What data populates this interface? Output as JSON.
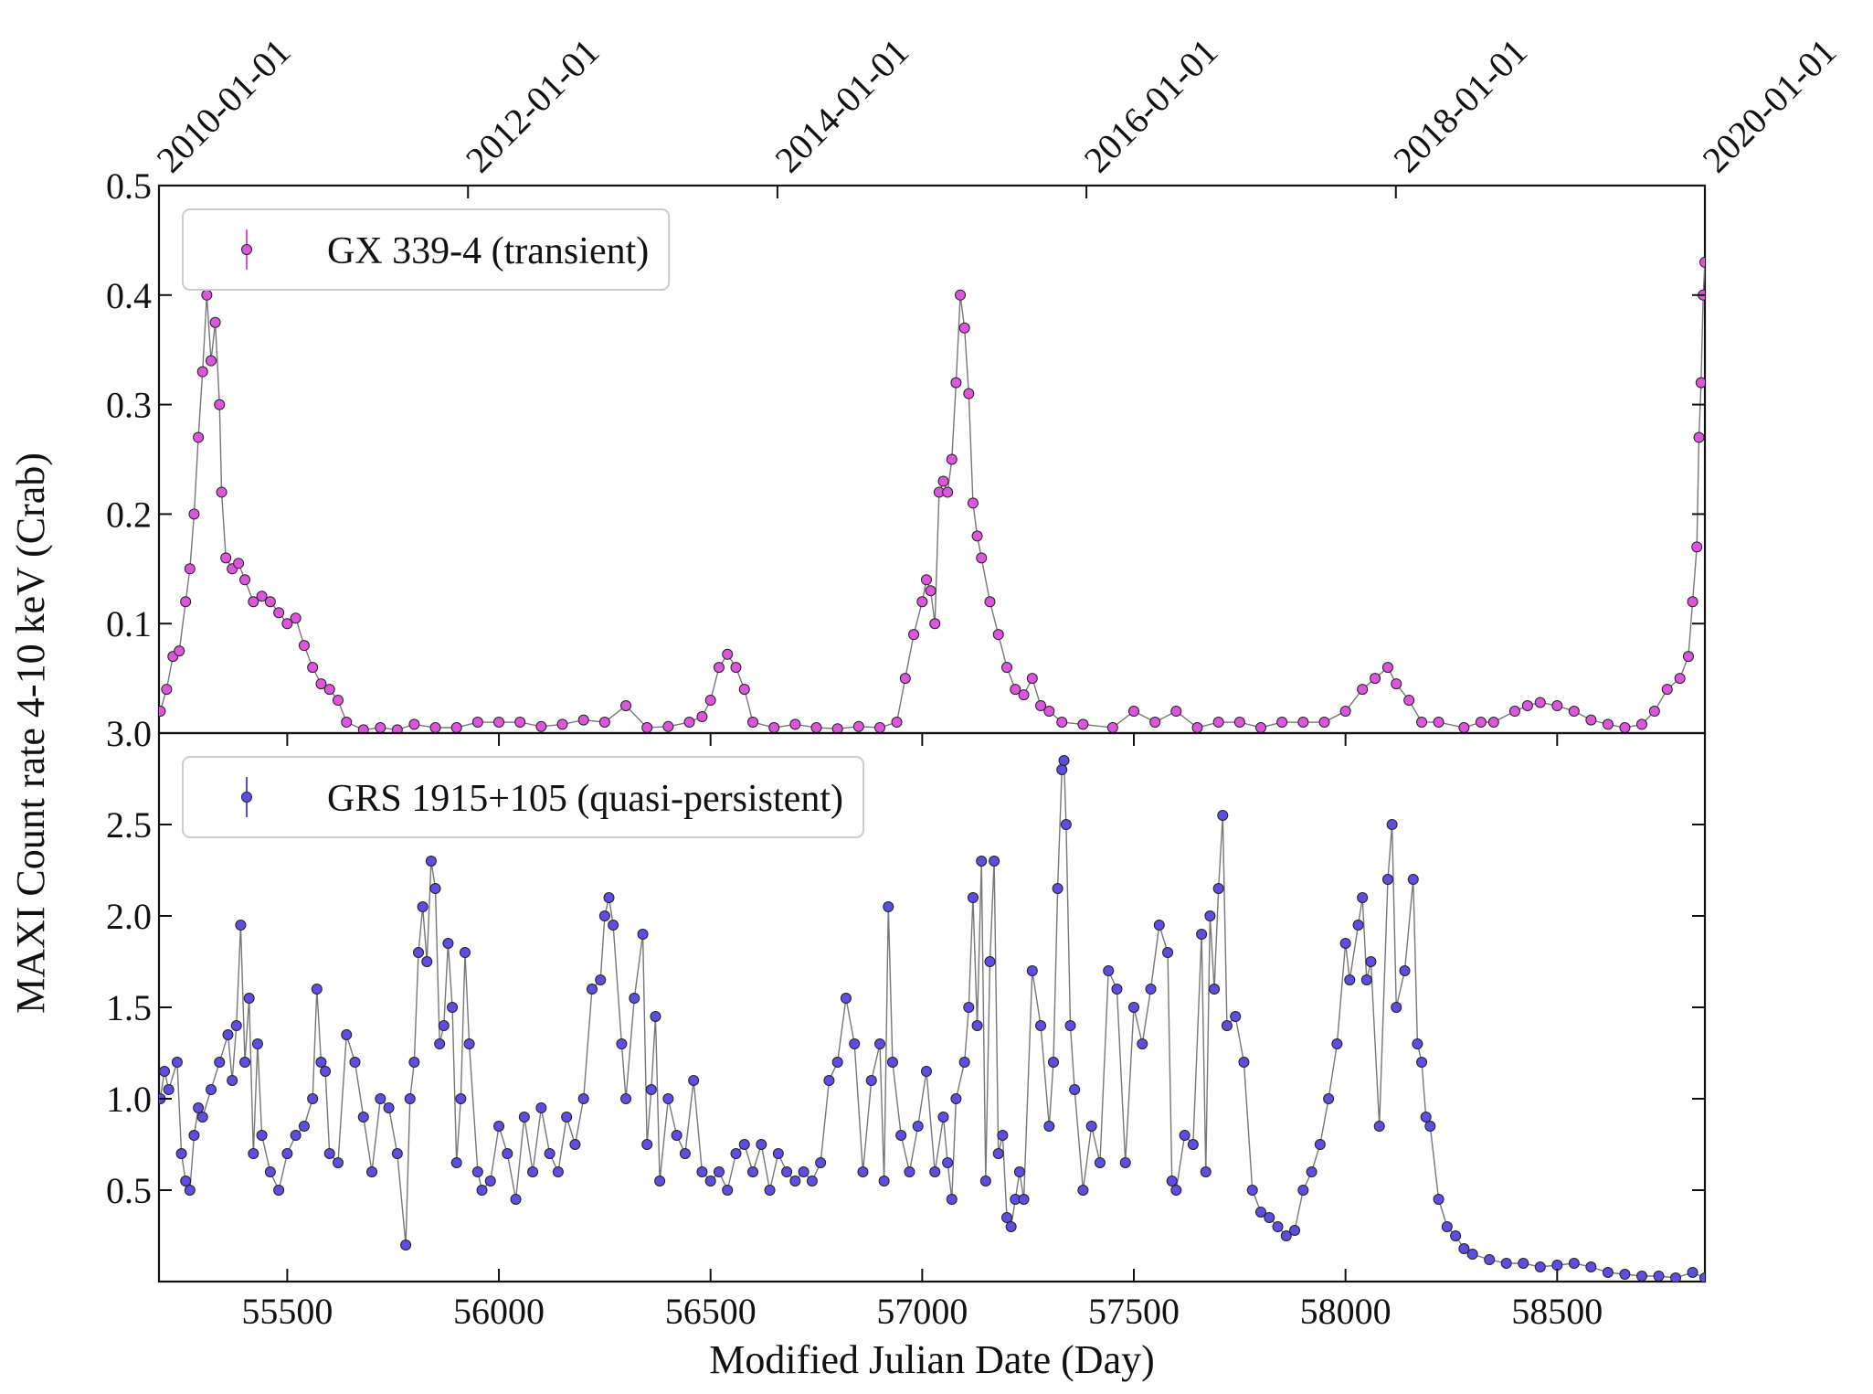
{
  "chart_data": [
    {
      "type": "scatter",
      "ylabel": "MAXI Count rate 4-10 keV (Crab)",
      "xlim": [
        55197,
        58849
      ],
      "ylim": [
        0,
        0.5
      ],
      "yticks": [
        0.1,
        0.2,
        0.3,
        0.4,
        0.5
      ],
      "x2ticks": [
        {
          "value": 55197,
          "label": "2010-01-01"
        },
        {
          "value": 55927,
          "label": "2012-01-01"
        },
        {
          "value": 56658,
          "label": "2014-01-01"
        },
        {
          "value": 57388,
          "label": "2016-01-01"
        },
        {
          "value": 58119,
          "label": "2018-01-01"
        },
        {
          "value": 58849,
          "label": "2020-01-01"
        }
      ],
      "legend": "upper left",
      "series": [
        {
          "name": "GX 339-4 (transient)",
          "color": "#dd55dd",
          "x": [
            55200,
            55215,
            55230,
            55245,
            55260,
            55270,
            55280,
            55290,
            55300,
            55310,
            55320,
            55330,
            55340,
            55345,
            55355,
            55370,
            55385,
            55400,
            55420,
            55440,
            55460,
            55480,
            55500,
            55520,
            55540,
            55560,
            55580,
            55600,
            55620,
            55640,
            55680,
            55720,
            55760,
            55800,
            55850,
            55900,
            55950,
            56000,
            56050,
            56100,
            56150,
            56200,
            56250,
            56300,
            56350,
            56400,
            56450,
            56480,
            56500,
            56520,
            56540,
            56560,
            56580,
            56600,
            56650,
            56700,
            56750,
            56800,
            56850,
            56900,
            56940,
            56960,
            56980,
            57000,
            57010,
            57020,
            57030,
            57040,
            57050,
            57060,
            57070,
            57080,
            57090,
            57100,
            57110,
            57120,
            57130,
            57140,
            57160,
            57180,
            57200,
            57220,
            57240,
            57260,
            57280,
            57300,
            57330,
            57380,
            57450,
            57500,
            57550,
            57600,
            57650,
            57700,
            57750,
            57800,
            57850,
            57900,
            57950,
            58000,
            58040,
            58070,
            58100,
            58120,
            58150,
            58180,
            58220,
            58280,
            58320,
            58350,
            58400,
            58430,
            58460,
            58500,
            58540,
            58580,
            58620,
            58660,
            58700,
            58730,
            58760,
            58790,
            58810,
            58820,
            58830,
            58835,
            58840,
            58845,
            58849
          ],
          "values": [
            0.02,
            0.04,
            0.07,
            0.075,
            0.12,
            0.15,
            0.2,
            0.27,
            0.33,
            0.4,
            0.34,
            0.375,
            0.3,
            0.22,
            0.16,
            0.15,
            0.155,
            0.14,
            0.12,
            0.125,
            0.12,
            0.11,
            0.1,
            0.105,
            0.08,
            0.06,
            0.045,
            0.04,
            0.03,
            0.01,
            0.003,
            0.005,
            0.003,
            0.008,
            0.005,
            0.005,
            0.01,
            0.01,
            0.01,
            0.006,
            0.008,
            0.012,
            0.01,
            0.025,
            0.005,
            0.006,
            0.01,
            0.015,
            0.03,
            0.06,
            0.072,
            0.06,
            0.04,
            0.01,
            0.005,
            0.008,
            0.005,
            0.004,
            0.006,
            0.005,
            0.01,
            0.05,
            0.09,
            0.12,
            0.14,
            0.13,
            0.1,
            0.22,
            0.23,
            0.22,
            0.25,
            0.32,
            0.4,
            0.37,
            0.31,
            0.21,
            0.18,
            0.16,
            0.12,
            0.09,
            0.06,
            0.04,
            0.035,
            0.05,
            0.025,
            0.02,
            0.01,
            0.008,
            0.005,
            0.02,
            0.01,
            0.02,
            0.005,
            0.01,
            0.01,
            0.005,
            0.01,
            0.01,
            0.01,
            0.02,
            0.04,
            0.05,
            0.06,
            0.045,
            0.03,
            0.01,
            0.01,
            0.005,
            0.01,
            0.01,
            0.02,
            0.025,
            0.028,
            0.025,
            0.02,
            0.012,
            0.008,
            0.005,
            0.008,
            0.02,
            0.04,
            0.05,
            0.07,
            0.12,
            0.17,
            0.27,
            0.32,
            0.4,
            0.43
          ]
        }
      ]
    },
    {
      "type": "scatter",
      "xlabel": "Modified Julian Date (Day)",
      "xlim": [
        55197,
        58849
      ],
      "ylim": [
        0,
        3.0
      ],
      "xticks": [
        55500,
        56000,
        56500,
        57000,
        57500,
        58000,
        58500
      ],
      "yticks": [
        0.5,
        {
          "value": 1.0,
          "label": "1.0"
        },
        1.5,
        {
          "value": 2.0,
          "label": "2.0"
        },
        2.5,
        {
          "value": 3.0,
          "label": "3.0"
        }
      ],
      "legend": "upper left",
      "series": [
        {
          "name": "GRS 1915+105 (quasi-persistent)",
          "color": "#5b4ee0",
          "x": [
            55200,
            55210,
            55220,
            55240,
            55250,
            55260,
            55270,
            55280,
            55290,
            55300,
            55320,
            55340,
            55360,
            55370,
            55380,
            55390,
            55400,
            55410,
            55420,
            55430,
            55440,
            55460,
            55480,
            55500,
            55520,
            55540,
            55560,
            55570,
            55580,
            55590,
            55600,
            55620,
            55640,
            55660,
            55680,
            55700,
            55720,
            55740,
            55760,
            55780,
            55790,
            55800,
            55810,
            55820,
            55830,
            55840,
            55850,
            55860,
            55870,
            55880,
            55890,
            55900,
            55910,
            55920,
            55930,
            55950,
            55960,
            55980,
            56000,
            56020,
            56040,
            56060,
            56080,
            56100,
            56120,
            56140,
            56160,
            56180,
            56200,
            56220,
            56240,
            56250,
            56260,
            56270,
            56290,
            56300,
            56320,
            56340,
            56350,
            56360,
            56370,
            56380,
            56400,
            56420,
            56440,
            56460,
            56480,
            56500,
            56520,
            56540,
            56560,
            56580,
            56600,
            56620,
            56640,
            56660,
            56680,
            56700,
            56720,
            56740,
            56760,
            56780,
            56800,
            56820,
            56840,
            56860,
            56880,
            56900,
            56910,
            56920,
            56930,
            56950,
            56970,
            56990,
            57010,
            57030,
            57050,
            57060,
            57070,
            57080,
            57100,
            57110,
            57120,
            57130,
            57140,
            57150,
            57160,
            57170,
            57180,
            57190,
            57200,
            57210,
            57220,
            57230,
            57240,
            57260,
            57280,
            57300,
            57310,
            57320,
            57330,
            57335,
            57340,
            57350,
            57360,
            57380,
            57400,
            57420,
            57440,
            57460,
            57480,
            57500,
            57520,
            57540,
            57560,
            57580,
            57590,
            57600,
            57620,
            57640,
            57660,
            57670,
            57680,
            57690,
            57700,
            57710,
            57720,
            57740,
            57760,
            57780,
            57800,
            57820,
            57840,
            57860,
            57880,
            57900,
            57920,
            57940,
            57960,
            57980,
            58000,
            58010,
            58030,
            58040,
            58050,
            58060,
            58080,
            58100,
            58110,
            58120,
            58140,
            58160,
            58170,
            58180,
            58190,
            58200,
            58220,
            58240,
            58260,
            58280,
            58300,
            58340,
            58380,
            58420,
            58460,
            58500,
            58540,
            58580,
            58620,
            58660,
            58700,
            58740,
            58780,
            58820,
            58849
          ],
          "values": [
            1.0,
            1.15,
            1.05,
            1.2,
            0.7,
            0.55,
            0.5,
            0.8,
            0.95,
            0.9,
            1.05,
            1.2,
            1.35,
            1.1,
            1.4,
            1.95,
            1.2,
            1.55,
            0.7,
            1.3,
            0.8,
            0.6,
            0.5,
            0.7,
            0.8,
            0.85,
            1.0,
            1.6,
            1.2,
            1.15,
            0.7,
            0.65,
            1.35,
            1.2,
            0.9,
            0.6,
            1.0,
            0.95,
            0.7,
            0.2,
            1.0,
            1.2,
            1.8,
            2.05,
            1.75,
            2.3,
            2.15,
            1.3,
            1.4,
            1.85,
            1.5,
            0.65,
            1.0,
            1.8,
            1.3,
            0.6,
            0.5,
            0.55,
            0.85,
            0.7,
            0.45,
            0.9,
            0.6,
            0.95,
            0.7,
            0.6,
            0.9,
            0.75,
            1.0,
            1.6,
            1.65,
            2.0,
            2.1,
            1.95,
            1.3,
            1.0,
            1.55,
            1.9,
            0.75,
            1.05,
            1.45,
            0.55,
            1.0,
            0.8,
            0.7,
            1.1,
            0.6,
            0.55,
            0.6,
            0.5,
            0.7,
            0.75,
            0.6,
            0.75,
            0.5,
            0.7,
            0.6,
            0.55,
            0.6,
            0.55,
            0.65,
            1.1,
            1.2,
            1.55,
            1.3,
            0.6,
            1.1,
            1.3,
            0.55,
            2.05,
            1.2,
            0.8,
            0.6,
            0.85,
            1.15,
            0.6,
            0.9,
            0.65,
            0.45,
            1.0,
            1.2,
            1.5,
            2.1,
            1.4,
            2.3,
            0.55,
            1.75,
            2.3,
            0.7,
            0.8,
            0.35,
            0.3,
            0.45,
            0.6,
            0.45,
            1.7,
            1.4,
            0.85,
            1.2,
            2.15,
            2.8,
            2.85,
            2.5,
            1.4,
            1.05,
            0.5,
            0.85,
            0.65,
            1.7,
            1.6,
            0.65,
            1.5,
            1.3,
            1.6,
            1.95,
            1.8,
            0.55,
            0.5,
            0.8,
            0.75,
            1.9,
            0.6,
            2.0,
            1.6,
            2.15,
            2.55,
            1.4,
            1.45,
            1.2,
            0.5,
            0.38,
            0.35,
            0.3,
            0.25,
            0.28,
            0.5,
            0.6,
            0.75,
            1.0,
            1.3,
            1.85,
            1.65,
            1.95,
            2.1,
            1.65,
            1.75,
            0.85,
            2.2,
            2.5,
            1.5,
            1.7,
            2.2,
            1.3,
            1.2,
            0.9,
            0.85,
            0.45,
            0.3,
            0.25,
            0.18,
            0.15,
            0.12,
            0.1,
            0.1,
            0.08,
            0.09,
            0.1,
            0.08,
            0.05,
            0.04,
            0.03,
            0.03,
            0.02,
            0.05,
            0.02
          ]
        }
      ]
    }
  ]
}
